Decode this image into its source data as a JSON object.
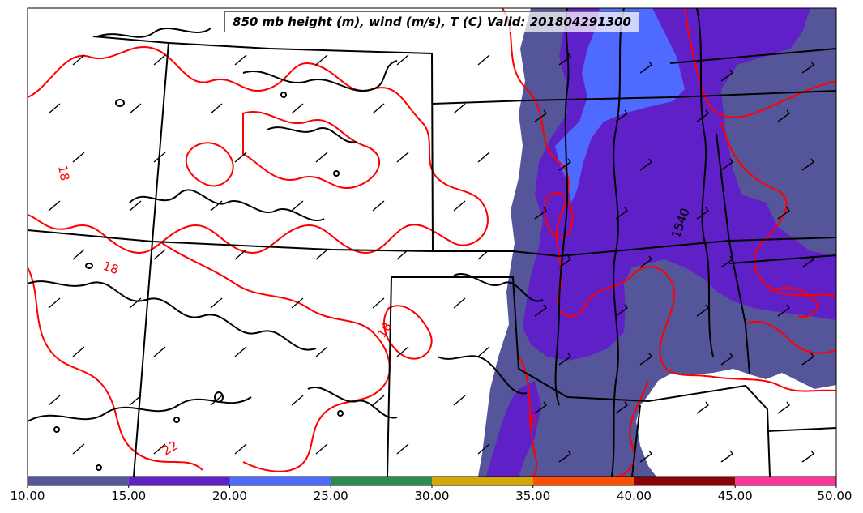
{
  "title": "850 mb height (m), wind (m/s), T (C) Valid: 201804291300",
  "colors": {
    "temperature_contour": "#ff0000",
    "height_contour": "#000000",
    "state_borders": "#000000"
  },
  "colorbar": {
    "bins": [
      {
        "from": 10,
        "to": 15,
        "color": "#555599"
      },
      {
        "from": 15,
        "to": 20,
        "color": "#6020c8"
      },
      {
        "from": 20,
        "to": 25,
        "color": "#4f6bff"
      },
      {
        "from": 25,
        "to": 30,
        "color": "#2e8b4e"
      },
      {
        "from": 30,
        "to": 35,
        "color": "#d4a800"
      },
      {
        "from": 35,
        "to": 40,
        "color": "#ff5000"
      },
      {
        "from": 40,
        "to": 45,
        "color": "#8b0000"
      },
      {
        "from": 45,
        "to": 50,
        "color": "#ff3399"
      }
    ],
    "tick_labels": [
      "10.00",
      "15.00",
      "20.00",
      "25.00",
      "30.00",
      "35.00",
      "40.00",
      "45.00",
      "50.00"
    ]
  },
  "contour_labels": {
    "temperature": [
      "18",
      "18",
      "18",
      "18",
      "22"
    ],
    "height": [
      "1540"
    ]
  }
}
